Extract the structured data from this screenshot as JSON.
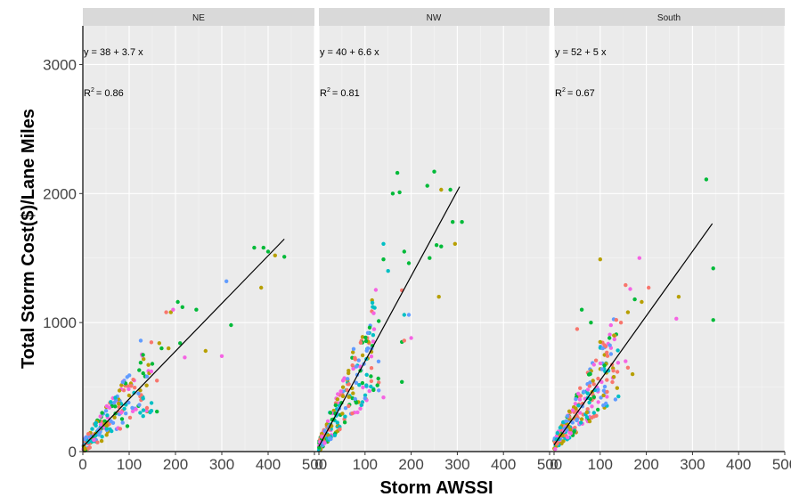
{
  "chart_data": {
    "type": "scatter",
    "xlabel": "Storm AWSSI",
    "ylabel": "Total Storm Cost($)/Lane Miles",
    "xlim": [
      0,
      500
    ],
    "ylim": [
      0,
      3300
    ],
    "x_ticks": [
      "0",
      "100",
      "200",
      "300",
      "400",
      "500"
    ],
    "y_ticks": [
      "0",
      "1000",
      "2000",
      "3000"
    ],
    "grid": true,
    "legend": "none",
    "point_colors": [
      "#F8766D",
      "#B79F00",
      "#00BA38",
      "#00BFC4",
      "#619CFF",
      "#F564E3"
    ],
    "panels": [
      {
        "name": "NE",
        "equation_lhs": "y = 38 + 3.7 x",
        "r2_value": "= 0.86",
        "fit": {
          "intercept": 38,
          "slope": 3.7,
          "x_range": [
            0,
            435
          ]
        },
        "notable_points": [
          {
            "x": 370,
            "y": 1580,
            "c": "#00BA38"
          },
          {
            "x": 390,
            "y": 1580,
            "c": "#00BA38"
          },
          {
            "x": 400,
            "y": 1550,
            "c": "#00BA38"
          },
          {
            "x": 415,
            "y": 1520,
            "c": "#B79F00"
          },
          {
            "x": 435,
            "y": 1510,
            "c": "#00BA38"
          },
          {
            "x": 385,
            "y": 1270,
            "c": "#B79F00"
          },
          {
            "x": 310,
            "y": 1320,
            "c": "#619CFF"
          },
          {
            "x": 320,
            "y": 980,
            "c": "#00BA38"
          },
          {
            "x": 300,
            "y": 740,
            "c": "#F564E3"
          },
          {
            "x": 265,
            "y": 780,
            "c": "#B79F00"
          },
          {
            "x": 205,
            "y": 1160,
            "c": "#00BA38"
          },
          {
            "x": 215,
            "y": 1120,
            "c": "#00BA38"
          },
          {
            "x": 180,
            "y": 1080,
            "c": "#F8766D"
          },
          {
            "x": 190,
            "y": 1080,
            "c": "#B79F00"
          },
          {
            "x": 195,
            "y": 1100,
            "c": "#F564E3"
          },
          {
            "x": 245,
            "y": 1100,
            "c": "#00BA38"
          },
          {
            "x": 210,
            "y": 840,
            "c": "#00BA38"
          },
          {
            "x": 220,
            "y": 730,
            "c": "#F564E3"
          },
          {
            "x": 125,
            "y": 860,
            "c": "#619CFF"
          },
          {
            "x": 165,
            "y": 840,
            "c": "#B79F00"
          },
          {
            "x": 170,
            "y": 800,
            "c": "#00BA38"
          },
          {
            "x": 185,
            "y": 800,
            "c": "#B79F00"
          },
          {
            "x": 150,
            "y": 680,
            "c": "#00BA38"
          },
          {
            "x": 130,
            "y": 750,
            "c": "#00BA38"
          },
          {
            "x": 160,
            "y": 550,
            "c": "#F8766D"
          },
          {
            "x": 120,
            "y": 450,
            "c": "#619CFF"
          },
          {
            "x": 160,
            "y": 310,
            "c": "#00BA38"
          }
        ],
        "cluster": {
          "x_max": 150,
          "count": 200,
          "seed": 11
        }
      },
      {
        "name": "NW",
        "equation_lhs": "y = 40 + 6.6 x",
        "r2_value": "= 0.81",
        "fit": {
          "intercept": 40,
          "slope": 6.6,
          "x_range": [
            0,
            305
          ]
        },
        "notable_points": [
          {
            "x": 170,
            "y": 2160,
            "c": "#00BA38"
          },
          {
            "x": 250,
            "y": 2170,
            "c": "#00BA38"
          },
          {
            "x": 235,
            "y": 2060,
            "c": "#00BA38"
          },
          {
            "x": 160,
            "y": 2000,
            "c": "#00BA38"
          },
          {
            "x": 175,
            "y": 2010,
            "c": "#00BA38"
          },
          {
            "x": 265,
            "y": 2030,
            "c": "#B79F00"
          },
          {
            "x": 285,
            "y": 2030,
            "c": "#00BA38"
          },
          {
            "x": 310,
            "y": 1780,
            "c": "#00BA38"
          },
          {
            "x": 290,
            "y": 1780,
            "c": "#00BA38"
          },
          {
            "x": 255,
            "y": 1600,
            "c": "#00BA38"
          },
          {
            "x": 265,
            "y": 1590,
            "c": "#00BA38"
          },
          {
            "x": 295,
            "y": 1610,
            "c": "#B79F00"
          },
          {
            "x": 140,
            "y": 1610,
            "c": "#00BFC4"
          },
          {
            "x": 185,
            "y": 1550,
            "c": "#00BA38"
          },
          {
            "x": 240,
            "y": 1500,
            "c": "#00BA38"
          },
          {
            "x": 140,
            "y": 1490,
            "c": "#00BA38"
          },
          {
            "x": 150,
            "y": 1400,
            "c": "#00BFC4"
          },
          {
            "x": 195,
            "y": 1460,
            "c": "#00BA38"
          },
          {
            "x": 260,
            "y": 1200,
            "c": "#B79F00"
          },
          {
            "x": 180,
            "y": 1250,
            "c": "#F8766D"
          },
          {
            "x": 185,
            "y": 1060,
            "c": "#00BFC4"
          },
          {
            "x": 195,
            "y": 1060,
            "c": "#619CFF"
          },
          {
            "x": 180,
            "y": 850,
            "c": "#00BA38"
          },
          {
            "x": 185,
            "y": 860,
            "c": "#F8766D"
          },
          {
            "x": 180,
            "y": 540,
            "c": "#00BA38"
          },
          {
            "x": 140,
            "y": 420,
            "c": "#F564E3"
          },
          {
            "x": 200,
            "y": 880,
            "c": "#F564E3"
          }
        ],
        "cluster": {
          "x_max": 130,
          "count": 230,
          "seed": 23
        }
      },
      {
        "name": "South",
        "equation_lhs": "y = 52 + 5 x",
        "r2_value": "= 0.67",
        "fit": {
          "intercept": 52,
          "slope": 5,
          "x_range": [
            0,
            343
          ]
        },
        "notable_points": [
          {
            "x": 330,
            "y": 2110,
            "c": "#00BA38"
          },
          {
            "x": 345,
            "y": 1420,
            "c": "#00BA38"
          },
          {
            "x": 345,
            "y": 1020,
            "c": "#00BA38"
          },
          {
            "x": 265,
            "y": 1030,
            "c": "#F564E3"
          },
          {
            "x": 270,
            "y": 1200,
            "c": "#B79F00"
          },
          {
            "x": 185,
            "y": 1500,
            "c": "#F564E3"
          },
          {
            "x": 100,
            "y": 1490,
            "c": "#B79F00"
          },
          {
            "x": 155,
            "y": 1290,
            "c": "#F8766D"
          },
          {
            "x": 165,
            "y": 1260,
            "c": "#F564E3"
          },
          {
            "x": 205,
            "y": 1270,
            "c": "#F8766D"
          },
          {
            "x": 175,
            "y": 1180,
            "c": "#00BA38"
          },
          {
            "x": 190,
            "y": 1160,
            "c": "#B79F00"
          },
          {
            "x": 145,
            "y": 1000,
            "c": "#F8766D"
          },
          {
            "x": 160,
            "y": 1080,
            "c": "#B79F00"
          },
          {
            "x": 60,
            "y": 1100,
            "c": "#00BA38"
          },
          {
            "x": 80,
            "y": 1000,
            "c": "#00BA38"
          },
          {
            "x": 130,
            "y": 900,
            "c": "#B79F00"
          },
          {
            "x": 120,
            "y": 880,
            "c": "#00BA38"
          },
          {
            "x": 50,
            "y": 950,
            "c": "#F8766D"
          },
          {
            "x": 100,
            "y": 850,
            "c": "#B79F00"
          },
          {
            "x": 160,
            "y": 650,
            "c": "#F8766D"
          },
          {
            "x": 170,
            "y": 600,
            "c": "#B79F00"
          },
          {
            "x": 155,
            "y": 700,
            "c": "#F564E3"
          }
        ],
        "cluster": {
          "x_max": 140,
          "count": 260,
          "seed": 37
        }
      }
    ]
  }
}
